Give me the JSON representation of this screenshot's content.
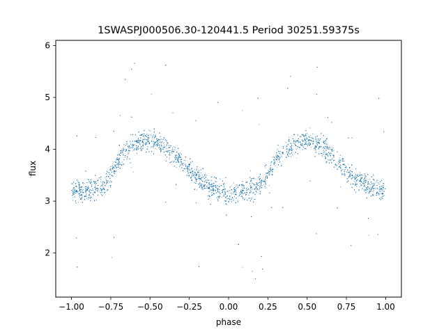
{
  "chart_data": {
    "type": "scatter",
    "title": "1SWASPJ000506.30-120441.5 Period 30251.59375s",
    "xlabel": "phase",
    "ylabel": "flux",
    "xlim": [
      -1.1,
      1.1
    ],
    "ylim": [
      1.15,
      6.1
    ],
    "xticks": [
      -1.0,
      -0.75,
      -0.5,
      -0.25,
      0.0,
      0.25,
      0.5,
      0.75,
      1.0
    ],
    "xtick_labels": [
      "−1.00",
      "−0.75",
      "−0.50",
      "−0.25",
      "0.00",
      "0.25",
      "0.50",
      "0.75",
      "1.00"
    ],
    "yticks": [
      2,
      3,
      4,
      5,
      6
    ],
    "ytick_labels": [
      "2",
      "3",
      "4",
      "5",
      "6"
    ],
    "grid": false,
    "legend": "none",
    "marker_color": "#1f77b4",
    "series": [
      {
        "phase": [
          -1.0,
          -0.9,
          -0.8,
          -0.75,
          -0.7,
          -0.6,
          -0.5,
          -0.4,
          -0.3,
          -0.25,
          -0.2,
          -0.1,
          0.0,
          0.1,
          0.2,
          0.25,
          0.3,
          0.4,
          0.5,
          0.6,
          0.7,
          0.75,
          0.8,
          0.9,
          1.0
        ],
        "flux": [
          3.2,
          3.2,
          3.3,
          3.5,
          3.8,
          4.1,
          4.2,
          4.05,
          3.75,
          3.6,
          3.45,
          3.25,
          3.15,
          3.2,
          3.3,
          3.5,
          3.8,
          4.1,
          4.2,
          4.05,
          3.75,
          3.6,
          3.45,
          3.3,
          3.2
        ]
      }
    ]
  }
}
